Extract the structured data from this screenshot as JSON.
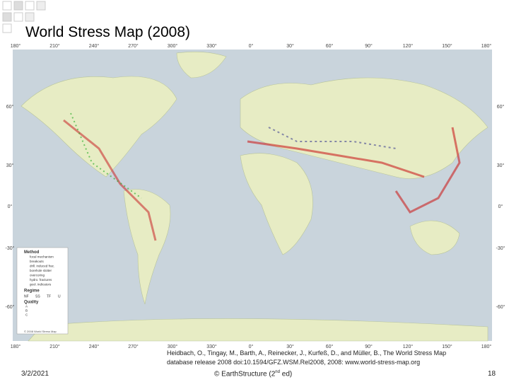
{
  "header": {
    "title": "World Stress Map (2008)"
  },
  "map": {
    "top_labels": [
      "180°",
      "210°",
      "240°",
      "270°",
      "300°",
      "330°",
      "0°",
      "30°",
      "60°",
      "90°",
      "120°",
      "150°",
      "180°"
    ],
    "bottom_labels": [
      "180°",
      "210°",
      "240°",
      "270°",
      "300°",
      "330°",
      "0°",
      "30°",
      "60°",
      "90°",
      "120°",
      "150°",
      "180°"
    ],
    "left_labels": [
      "60°",
      "30°",
      "0°",
      "-30°",
      "-60°"
    ],
    "right_labels": [
      "60°",
      "30°",
      "0°",
      "-30°",
      "-60°"
    ],
    "legend": {
      "method_title": "Method",
      "methods": [
        "focal mechanism",
        "breakouts",
        "drill. induced frac.",
        "borehole slotter",
        "overcoring",
        "hydro. fractures",
        "geol. indicators"
      ],
      "regime_title": "Regime",
      "regimes": [
        "NF",
        "SS",
        "TF",
        "U"
      ],
      "quality_title": "Quality",
      "qualities": [
        "A",
        "B",
        "C"
      ],
      "copyright": "© 2008 World Stress Map"
    }
  },
  "citation": [
    "Heidbach, O., Tingay, M., Barth, A., Reinecker, J., Kurfeß, D., and Müller, B., The World Stress Map",
    "database release 2008 doi:10.1594/GFZ.WSM.Rel2008, 2008: www.world-stress-map.org"
  ],
  "footer": {
    "date": "3/2/2021",
    "credit_main": "© EarthStructure (2",
    "credit_sup": "nd",
    "credit_end": " ed)",
    "page": "18"
  }
}
